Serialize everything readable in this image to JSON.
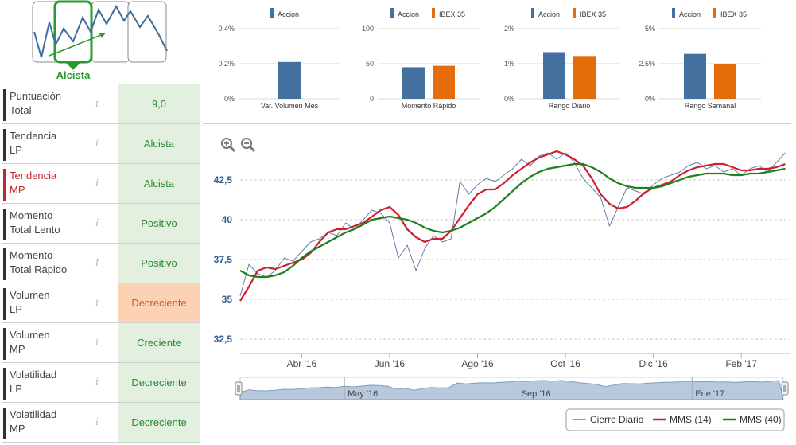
{
  "trend_header": {
    "label": "Alcista",
    "colors": {
      "line": "#3e6d9c",
      "selected": "#2a9a2e",
      "frame": "#888888"
    }
  },
  "rows": [
    {
      "label_line1": "Puntuación",
      "label_line2": "Total",
      "value": "9,0",
      "status": "green",
      "highlight": false
    },
    {
      "label_line1": "Tendencia",
      "label_line2": "LP",
      "value": "Alcista",
      "status": "green",
      "highlight": false
    },
    {
      "label_line1": "Tendencia",
      "label_line2": "MP",
      "value": "Alcista",
      "status": "green",
      "highlight": true
    },
    {
      "label_line1": "Momento",
      "label_line2": "Total Lento",
      "value": "Positivo",
      "status": "green",
      "highlight": false
    },
    {
      "label_line1": "Momento",
      "label_line2": "Total Rápido",
      "value": "Positivo",
      "status": "green",
      "highlight": false
    },
    {
      "label_line1": "Volumen",
      "label_line2": "LP",
      "value": "Decreciente",
      "status": "orange",
      "highlight": false
    },
    {
      "label_line1": "Volumen",
      "label_line2": "MP",
      "value": "Creciente",
      "status": "green",
      "highlight": false
    },
    {
      "label_line1": "Volatilidad",
      "label_line2": "LP",
      "value": "Decreciente",
      "status": "green",
      "highlight": false
    },
    {
      "label_line1": "Volatilidad",
      "label_line2": "MP",
      "value": "Decreciente",
      "status": "green",
      "highlight": false
    }
  ],
  "info_icon": "i",
  "colors": {
    "accion": "#44709f",
    "ibex": "#e46c0a",
    "grid": "#d8d8d8",
    "axis_text": "#555555"
  },
  "chart_data": [
    {
      "type": "bar",
      "title": "Var. Volumen Mes",
      "legend": [
        "Accion"
      ],
      "ticks": [
        "0.4%",
        "0.2%",
        "0%"
      ],
      "ylim": [
        0,
        0.4
      ],
      "series": [
        {
          "name": "Accion",
          "values": [
            0.21
          ]
        }
      ]
    },
    {
      "type": "bar",
      "title": "Momento Rápido",
      "legend": [
        "Accion",
        "IBEX 35"
      ],
      "ticks": [
        "100",
        "50",
        "0"
      ],
      "ylim": [
        0,
        100
      ],
      "series": [
        {
          "name": "Accion",
          "values": [
            45
          ]
        },
        {
          "name": "IBEX 35",
          "values": [
            47
          ]
        }
      ]
    },
    {
      "type": "bar",
      "title": "Rango Diario",
      "legend": [
        "Accion",
        "IBEX 35"
      ],
      "ticks": [
        "2%",
        "1%",
        "0%"
      ],
      "ylim": [
        0,
        2
      ],
      "series": [
        {
          "name": "Accion",
          "values": [
            1.33
          ]
        },
        {
          "name": "IBEX 35",
          "values": [
            1.22
          ]
        }
      ]
    },
    {
      "type": "bar",
      "title": "Rango Semanal",
      "legend": [
        "Accion",
        "IBEX 35"
      ],
      "ticks": [
        "5%",
        "2.5%",
        "0%"
      ],
      "ylim": [
        0,
        5
      ],
      "series": [
        {
          "name": "Accion",
          "values": [
            3.2
          ]
        },
        {
          "name": "IBEX 35",
          "values": [
            2.5
          ]
        }
      ]
    },
    {
      "type": "line",
      "title": "",
      "y_ticks": [
        "42,5",
        "40",
        "37,5",
        "35",
        "32,5"
      ],
      "y_tick_values": [
        42.5,
        40,
        37.5,
        35,
        32.5
      ],
      "ylim": [
        31.6,
        44.8
      ],
      "x_ticks": [
        "Abr '16",
        "Jun '16",
        "Ago '16",
        "Oct '16",
        "Dic '16",
        "Feb '17"
      ],
      "x_tick_positions": [
        2.0,
        4.0,
        6.0,
        8.0,
        10.0,
        12.0
      ],
      "xlim": [
        0.6,
        13.1
      ],
      "navigator_labels": [
        "May '16",
        "Sep '16",
        "Ene '17"
      ],
      "navigator_positions": [
        3.0,
        7.0,
        11.0
      ],
      "legend": [
        "Cierre Diario",
        "MMS (14)",
        "MMS (40)"
      ],
      "series": [
        {
          "name": "Cierre Diario",
          "color": "#5f7fa8",
          "x": [
            0.6,
            0.8,
            1.0,
            1.2,
            1.4,
            1.6,
            1.8,
            2.0,
            2.2,
            2.4,
            2.6,
            2.8,
            3.0,
            3.2,
            3.4,
            3.6,
            3.8,
            4.0,
            4.2,
            4.4,
            4.6,
            4.8,
            5.0,
            5.2,
            5.4,
            5.6,
            5.8,
            6.0,
            6.2,
            6.4,
            6.6,
            6.8,
            7.0,
            7.2,
            7.4,
            7.6,
            7.8,
            8.0,
            8.2,
            8.4,
            8.6,
            8.8,
            9.0,
            9.2,
            9.4,
            9.6,
            9.8,
            10.0,
            10.2,
            10.4,
            10.6,
            10.8,
            11.0,
            11.2,
            11.4,
            11.6,
            11.8,
            12.0,
            12.2,
            12.4,
            12.6,
            12.8,
            13.0
          ],
          "y": [
            35.2,
            37.2,
            36.6,
            36.4,
            36.8,
            37.6,
            37.4,
            38.0,
            38.6,
            38.8,
            39.2,
            39.0,
            39.8,
            39.4,
            40.0,
            40.6,
            40.4,
            39.8,
            37.6,
            38.4,
            36.8,
            38.2,
            39.0,
            38.6,
            38.8,
            42.4,
            41.6,
            42.2,
            42.6,
            42.4,
            42.8,
            43.2,
            43.8,
            43.4,
            44.0,
            44.2,
            43.8,
            44.2,
            43.6,
            42.6,
            42.0,
            41.4,
            39.6,
            40.8,
            42.0,
            41.8,
            41.6,
            42.2,
            42.6,
            42.8,
            43.0,
            43.4,
            43.6,
            43.2,
            43.4,
            43.0,
            43.2,
            42.8,
            43.2,
            43.4,
            43.0,
            43.6,
            44.2
          ]
        },
        {
          "name": "MMS (14)",
          "color": "#d21f2e",
          "x": [
            0.6,
            0.8,
            1.0,
            1.2,
            1.4,
            1.6,
            1.8,
            2.0,
            2.2,
            2.4,
            2.6,
            2.8,
            3.0,
            3.2,
            3.4,
            3.6,
            3.8,
            4.0,
            4.2,
            4.4,
            4.6,
            4.8,
            5.0,
            5.2,
            5.4,
            5.6,
            5.8,
            6.0,
            6.2,
            6.4,
            6.6,
            6.8,
            7.0,
            7.2,
            7.4,
            7.6,
            7.8,
            8.0,
            8.2,
            8.4,
            8.6,
            8.8,
            9.0,
            9.2,
            9.4,
            9.6,
            9.8,
            10.0,
            10.2,
            10.4,
            10.6,
            10.8,
            11.0,
            11.2,
            11.4,
            11.6,
            11.8,
            12.0,
            12.2,
            12.4,
            12.6,
            12.8,
            13.0
          ],
          "y": [
            34.9,
            35.8,
            36.8,
            37.0,
            36.9,
            37.1,
            37.3,
            37.5,
            37.9,
            38.6,
            39.2,
            39.4,
            39.4,
            39.6,
            39.8,
            40.2,
            40.6,
            40.8,
            40.3,
            39.4,
            38.9,
            38.6,
            38.8,
            38.8,
            39.3,
            40.1,
            40.9,
            41.6,
            41.9,
            41.9,
            42.3,
            42.8,
            43.2,
            43.6,
            43.9,
            44.1,
            44.3,
            44.1,
            43.8,
            43.4,
            42.6,
            41.6,
            41.0,
            40.7,
            40.8,
            41.2,
            41.7,
            42.0,
            42.2,
            42.4,
            42.8,
            43.1,
            43.3,
            43.4,
            43.5,
            43.5,
            43.3,
            43.1,
            43.1,
            43.2,
            43.2,
            43.3,
            43.5
          ]
        },
        {
          "name": "MMS (40)",
          "color": "#1e7f1e",
          "x": [
            0.6,
            0.8,
            1.0,
            1.2,
            1.4,
            1.6,
            1.8,
            2.0,
            2.2,
            2.4,
            2.6,
            2.8,
            3.0,
            3.2,
            3.4,
            3.6,
            3.8,
            4.0,
            4.2,
            4.4,
            4.6,
            4.8,
            5.0,
            5.2,
            5.4,
            5.6,
            5.8,
            6.0,
            6.2,
            6.4,
            6.6,
            6.8,
            7.0,
            7.2,
            7.4,
            7.6,
            7.8,
            8.0,
            8.2,
            8.4,
            8.6,
            8.8,
            9.0,
            9.2,
            9.4,
            9.6,
            9.8,
            10.0,
            10.2,
            10.4,
            10.6,
            10.8,
            11.0,
            11.2,
            11.4,
            11.6,
            11.8,
            12.0,
            12.2,
            12.4,
            12.6,
            12.8,
            13.0
          ],
          "y": [
            36.8,
            36.5,
            36.4,
            36.4,
            36.5,
            36.7,
            37.1,
            37.6,
            38.0,
            38.3,
            38.6,
            38.9,
            39.2,
            39.4,
            39.7,
            40.0,
            40.1,
            40.2,
            40.1,
            40.0,
            39.8,
            39.5,
            39.3,
            39.2,
            39.3,
            39.5,
            39.8,
            40.1,
            40.4,
            40.8,
            41.3,
            41.8,
            42.3,
            42.7,
            43.0,
            43.2,
            43.3,
            43.4,
            43.5,
            43.5,
            43.3,
            43.0,
            42.6,
            42.3,
            42.1,
            42.0,
            42.0,
            42.0,
            42.1,
            42.3,
            42.5,
            42.7,
            42.8,
            42.9,
            42.9,
            42.9,
            42.8,
            42.8,
            42.9,
            42.9,
            43.0,
            43.1,
            43.2
          ]
        }
      ]
    }
  ]
}
